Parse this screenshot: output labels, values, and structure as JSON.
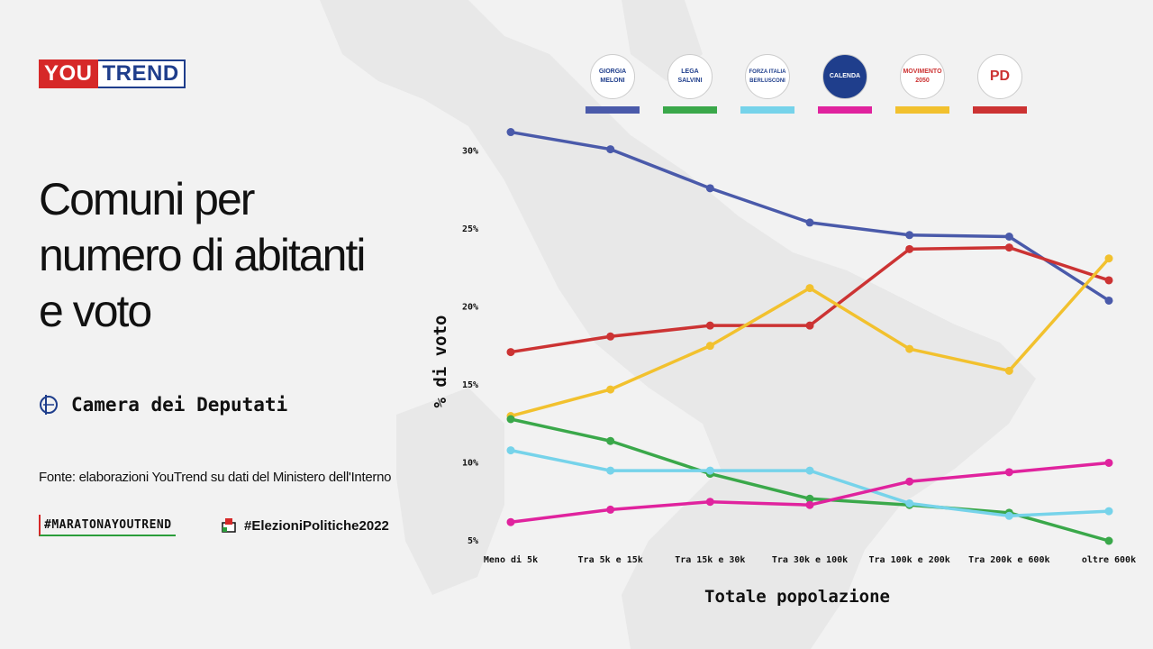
{
  "brand": {
    "you": "YOU",
    "trend": "TREND"
  },
  "title_lines": [
    "Comuni per",
    "numero di abitanti",
    "e voto"
  ],
  "chamber": "Camera dei Deputati",
  "source": "Fonte: elaborazioni YouTrend su dati del Ministero dell'Interno",
  "hashtags": [
    "#MARATONAYOUTREND",
    "#ElezioniPolitiche2022"
  ],
  "parties": [
    {
      "logo_text": "GIORGIA MELONI",
      "color": "#4a5aaa",
      "icon": "fdi-logo-icon"
    },
    {
      "logo_text": "LEGA SALVINI",
      "color": "#3aa84a",
      "icon": "lega-logo-icon"
    },
    {
      "logo_text": "FORZA ITALIA BERLUSCONI",
      "color": "#76d3ea",
      "icon": "fi-logo-icon"
    },
    {
      "logo_text": "CALENDA",
      "color": "#e0239e",
      "icon": "azione-logo-icon"
    },
    {
      "logo_text": "MOVIMENTO 2050",
      "color": "#f2c12e",
      "icon": "m5s-logo-icon"
    },
    {
      "logo_text": "PD",
      "color": "#cc3333",
      "icon": "pd-logo-icon"
    }
  ],
  "chart_data": {
    "type": "line",
    "xlabel": "Totale popolazione",
    "ylabel": "% di voto",
    "categories": [
      "Meno di 5k",
      "Tra 5k e 15k",
      "Tra 15k e 30k",
      "Tra 30k e 100k",
      "Tra 100k e 200k",
      "Tra 200k e 600k",
      "oltre 600k"
    ],
    "yticks": [
      "5%",
      "10%",
      "15%",
      "20%",
      "25%",
      "30%"
    ],
    "ylim": [
      5,
      31
    ],
    "grid": false,
    "series": [
      {
        "color": "#4a5aaa",
        "values": [
          31.2,
          30.1,
          27.6,
          25.4,
          24.6,
          24.5,
          20.4
        ]
      },
      {
        "color": "#cc3333",
        "values": [
          17.1,
          18.1,
          18.8,
          18.8,
          23.7,
          23.8,
          21.7
        ]
      },
      {
        "color": "#f2c12e",
        "values": [
          13.0,
          14.7,
          17.5,
          21.2,
          17.3,
          15.9,
          23.1
        ]
      },
      {
        "color": "#3aa84a",
        "values": [
          12.8,
          11.4,
          9.3,
          7.7,
          7.3,
          6.8,
          5.0
        ]
      },
      {
        "color": "#76d3ea",
        "values": [
          10.8,
          9.5,
          9.5,
          9.5,
          7.4,
          6.6,
          6.9
        ]
      },
      {
        "color": "#e0239e",
        "values": [
          6.2,
          7.0,
          7.5,
          7.3,
          8.8,
          9.4,
          10.0
        ]
      }
    ]
  }
}
